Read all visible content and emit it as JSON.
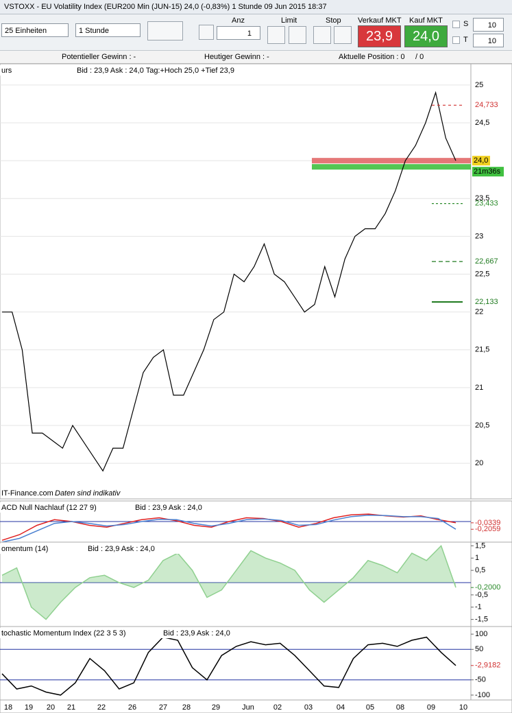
{
  "title_bar": "VSTOXX - EU Volatility Index (EUR200 Min (JUN-15)   24,0 (-0,83%)     1 Stunde   09 Jun 2015 18:37",
  "toolbar": {
    "units": "25 Einheiten",
    "interval": "1 Stunde",
    "anz_label": "Anz",
    "anz_value": "1",
    "limit": "Limit",
    "stop": "Stop",
    "sell_label": "Verkauf MKT",
    "sell_price": "23,9",
    "buy_label": "Kauf MKT",
    "buy_price": "24,0",
    "s_label": "S",
    "s_value": "10",
    "t_label": "T",
    "t_value": "10"
  },
  "info": {
    "potential": "Potentieller Gewinn : -",
    "today": "Heutiger Gewinn : -",
    "position": "Aktuelle Position : 0",
    "position2": "/ 0"
  },
  "footer": "IT-Finance.com",
  "footer_note": "Daten sind indikativ",
  "x_axis": [
    "18",
    "19",
    "20",
    "21",
    "22",
    "26",
    "27",
    "28",
    "29",
    "Jun",
    "02",
    "03",
    "04",
    "05",
    "08",
    "09",
    "10"
  ],
  "chart_data": [
    {
      "type": "line",
      "header": "urs",
      "header_info": "Bid : 23,9 Ask : 24,0 Tag:+Hoch 25,0 +Tief 23,9",
      "ylim": [
        19.53,
        25.28
      ],
      "yticks": [
        20,
        {
          "value": 20.5,
          "label": "20,5"
        },
        21,
        {
          "value": 21.5,
          "label": "21,5"
        },
        22,
        {
          "value": 22.5,
          "label": "22,5"
        },
        23,
        {
          "value": 23.5,
          "label": "23,5"
        },
        24,
        {
          "value": 24.5,
          "label": "24,5"
        },
        25
      ],
      "grid": true,
      "series": [
        {
          "name": "VSTOXX",
          "color": "#000000",
          "values": [
            22.0,
            22.0,
            21.5,
            20.4,
            20.4,
            20.3,
            20.2,
            20.5,
            20.3,
            20.1,
            19.9,
            20.2,
            20.2,
            20.7,
            21.2,
            21.4,
            21.5,
            20.9,
            20.9,
            21.2,
            21.5,
            21.9,
            22.0,
            22.5,
            22.4,
            22.6,
            22.9,
            22.5,
            22.4,
            22.2,
            22.0,
            22.1,
            22.6,
            22.2,
            22.7,
            23.0,
            23.1,
            23.1,
            23.3,
            23.6,
            24.0,
            24.2,
            24.5,
            24.9,
            24.3,
            24.0
          ]
        }
      ],
      "levels": [
        {
          "value": 24.733,
          "label": "24,733",
          "color": "#d03030",
          "dash": "4,4"
        },
        {
          "value": 23.433,
          "label": "23,433",
          "color": "#2a8a2a",
          "dash": "3,3"
        },
        {
          "value": 22.667,
          "label": "22,667",
          "color": "#1f7a1f",
          "dash": "6,4"
        },
        {
          "value": 22.133,
          "label": "22,133",
          "color": "#1f7a1f",
          "dash": "0"
        }
      ],
      "current": {
        "value": 24.0,
        "label": "24,0",
        "timer": "21m36s"
      }
    },
    {
      "type": "line",
      "header": "ACD Null Nachlauf (12 27 9)",
      "header_info": "Bid : 23,9 Ask : 24,0",
      "ylim": [
        -0.55,
        0.55
      ],
      "series": [
        {
          "name": "MACD",
          "color": "#e02020",
          "values": [
            -0.5,
            -0.35,
            -0.1,
            0.05,
            0.0,
            -0.1,
            -0.15,
            -0.05,
            0.05,
            0.1,
            0.02,
            -0.1,
            -0.15,
            0.0,
            0.1,
            0.08,
            0.0,
            -0.15,
            -0.05,
            0.1,
            0.18,
            0.2,
            0.15,
            0.12,
            0.15,
            0.05,
            -0.0339
          ]
        },
        {
          "name": "Signal",
          "color": "#4a80d0",
          "values": [
            -0.55,
            -0.45,
            -0.25,
            -0.05,
            0.0,
            -0.05,
            -0.12,
            -0.08,
            0.0,
            0.06,
            0.05,
            -0.05,
            -0.12,
            -0.05,
            0.05,
            0.07,
            0.03,
            -0.1,
            -0.08,
            0.04,
            0.13,
            0.17,
            0.16,
            0.13,
            0.13,
            0.08,
            -0.2059
          ]
        }
      ],
      "levels": [
        {
          "value": -0.0339,
          "label": "-0,0339",
          "color": "#d03030",
          "dash": "0"
        },
        {
          "value": -0.2059,
          "label": "-0,2059",
          "color": "#d03030",
          "dash": "0"
        }
      ],
      "zero_line": 0
    },
    {
      "type": "area",
      "header": "omentum (14)",
      "header_info": "Bid : 23,9 Ask : 24,0",
      "ylim": [
        -1.79,
        1.65
      ],
      "yticks": [
        {
          "value": 1.5,
          "label": "1,5"
        },
        1,
        {
          "value": 0.5,
          "label": "0,5"
        },
        {
          "value": -0.5,
          "label": "-0,5"
        },
        -1,
        {
          "value": -1.5,
          "label": "-1,5"
        }
      ],
      "series": [
        {
          "name": "Momentum",
          "color": "#8fd08f",
          "values": [
            0.3,
            0.6,
            -1.0,
            -1.5,
            -0.8,
            -0.2,
            0.2,
            0.3,
            0.0,
            -0.2,
            0.1,
            0.9,
            1.2,
            0.5,
            -0.6,
            -0.3,
            0.5,
            1.3,
            1.0,
            0.8,
            0.5,
            -0.3,
            -0.8,
            -0.3,
            0.2,
            0.9,
            0.7,
            0.4,
            1.2,
            0.9,
            1.5,
            -0.2
          ]
        }
      ],
      "levels": [
        {
          "value": -0.2,
          "label": "-0,2000",
          "color": "#2a8a2a",
          "dash": "0"
        }
      ],
      "zero_line": 0
    },
    {
      "type": "line",
      "header": "tochastic Momentum Index (22 3 5 3)",
      "header_info": "Bid : 23,9 Ask : 24,0",
      "ylim": [
        -116,
        125
      ],
      "yticks": [
        100,
        50,
        -50,
        -100
      ],
      "series": [
        {
          "name": "SMI",
          "color": "#000000",
          "values": [
            -30,
            -80,
            -70,
            -90,
            -100,
            -60,
            20,
            -20,
            -80,
            -60,
            40,
            90,
            80,
            -10,
            -50,
            30,
            60,
            75,
            65,
            70,
            30,
            -20,
            -70,
            -75,
            20,
            65,
            70,
            60,
            80,
            90,
            40,
            -2.9182
          ]
        }
      ],
      "levels": [
        {
          "value": -2.9182,
          "label": "-2,9182",
          "color": "#d03030",
          "dash": "0"
        }
      ],
      "ref_lines": [
        50,
        -50
      ]
    }
  ]
}
